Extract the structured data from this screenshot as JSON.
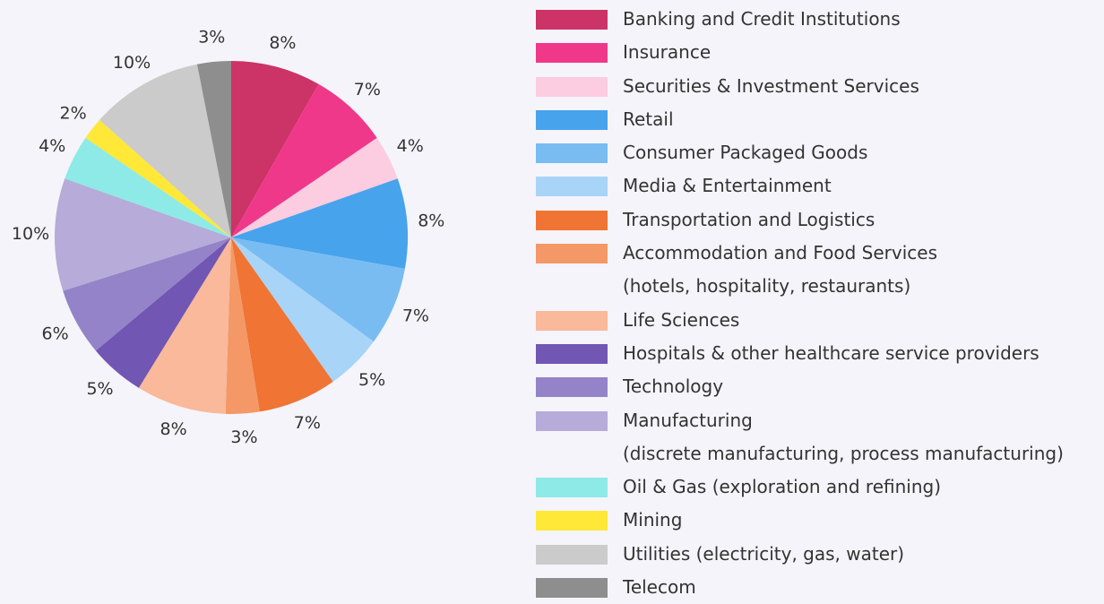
{
  "chart_data": {
    "type": "pie",
    "categories": [
      "Banking and Credit Institutions",
      "Insurance",
      "Securities & Investment Services",
      "Retail",
      "Consumer Packaged Goods",
      "Media & Entertainment",
      "Transportation and Logistics",
      "Accommodation and Food Services\n(hotels, hospitality, restaurants)",
      "Life Sciences",
      "Hospitals & other healthcare service providers",
      "Technology",
      "Manufacturing\n(discrete manufacturing, process manufacturing)",
      "Oil & Gas (exploration and refining)",
      "Mining",
      "Utilities (electricity, gas, water)",
      "Telecom"
    ],
    "values": [
      8,
      7,
      4,
      8,
      7,
      5,
      7,
      3,
      8,
      5,
      6,
      10,
      4,
      2,
      10,
      3
    ],
    "value_labels": [
      "8%",
      "7%",
      "4%",
      "8%",
      "7%",
      "5%",
      "7%",
      "3%",
      "8%",
      "5%",
      "6%",
      "10%",
      "4%",
      "2%",
      "10%",
      "3%"
    ],
    "colors": [
      "#cc3366",
      "#f0388a",
      "#fccce0",
      "#47a3ec",
      "#78bcf2",
      "#a8d4f7",
      "#f07434",
      "#f39866",
      "#f9b99a",
      "#7256b3",
      "#9483c8",
      "#b6abd9",
      "#8eeae6",
      "#ffe838",
      "#cbcbcb",
      "#8e8e8e"
    ],
    "legend": "right"
  }
}
